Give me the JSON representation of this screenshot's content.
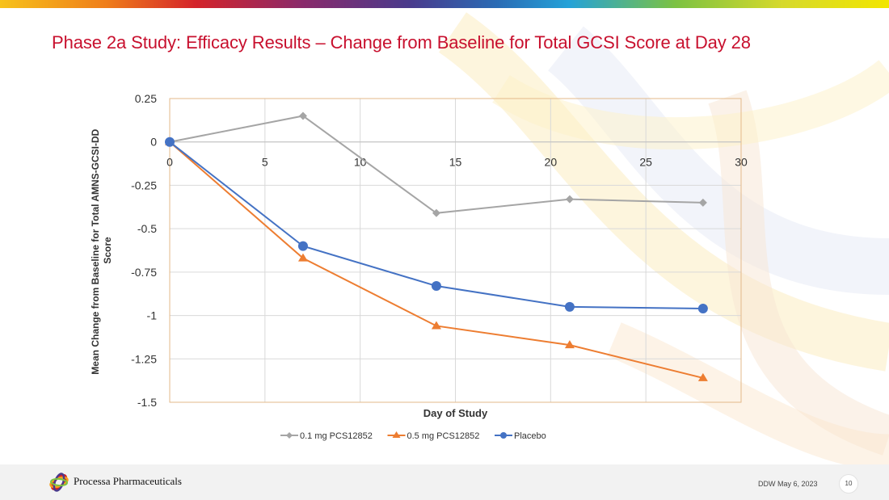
{
  "slide": {
    "title": "Phase 2a Study:  Efficacy Results – Change from Baseline for Total GCSI Score at Day 28",
    "company": "Processa Pharmaceuticals",
    "footer_note": "DDW May 6, 2023",
    "page_number": "10"
  },
  "colors": {
    "title": "#c8102e",
    "series_gray": "#a5a5a5",
    "series_orange": "#ed7d31",
    "series_blue": "#4472c4",
    "plot_border": "#e3b98a",
    "grid": "#d9d9d9"
  },
  "chart_data": {
    "type": "line",
    "xlabel": "Day of Study",
    "ylabel": "Mean Change from Baseline for Total AMNS-GCSI-DD Score",
    "ylabel_lines": [
      "Mean Change from Baseline for Total AMNS-GCSI-DD",
      "Score"
    ],
    "xlim": [
      0,
      30
    ],
    "ylim": [
      -1.5,
      0.25
    ],
    "xticks": [
      0,
      5,
      10,
      15,
      20,
      25,
      30
    ],
    "xtick_labels": [
      "0",
      "5",
      "10",
      "15",
      "20",
      "25",
      "30"
    ],
    "yticks": [
      0.25,
      0,
      -0.25,
      -0.5,
      -0.75,
      -1,
      -1.25,
      -1.5
    ],
    "ytick_labels": [
      "0.25",
      "0",
      "-0.25",
      "-0.5",
      "-0.75",
      "-1",
      "-1.25",
      "-1.5"
    ],
    "legend_position": "bottom",
    "series": [
      {
        "name": "0.1 mg PCS12852",
        "marker": "diamond",
        "color": "#a5a5a5",
        "x": [
          0,
          7,
          14,
          21,
          28
        ],
        "y": [
          0,
          0.15,
          -0.41,
          -0.33,
          -0.35
        ]
      },
      {
        "name": "0.5 mg PCS12852",
        "marker": "triangle",
        "color": "#ed7d31",
        "x": [
          0,
          7,
          14,
          21,
          28
        ],
        "y": [
          0,
          -0.67,
          -1.06,
          -1.17,
          -1.36
        ]
      },
      {
        "name": "Placebo",
        "marker": "circle",
        "color": "#4472c4",
        "x": [
          0,
          7,
          14,
          21,
          28
        ],
        "y": [
          0,
          -0.6,
          -0.83,
          -0.95,
          -0.96
        ]
      }
    ]
  }
}
